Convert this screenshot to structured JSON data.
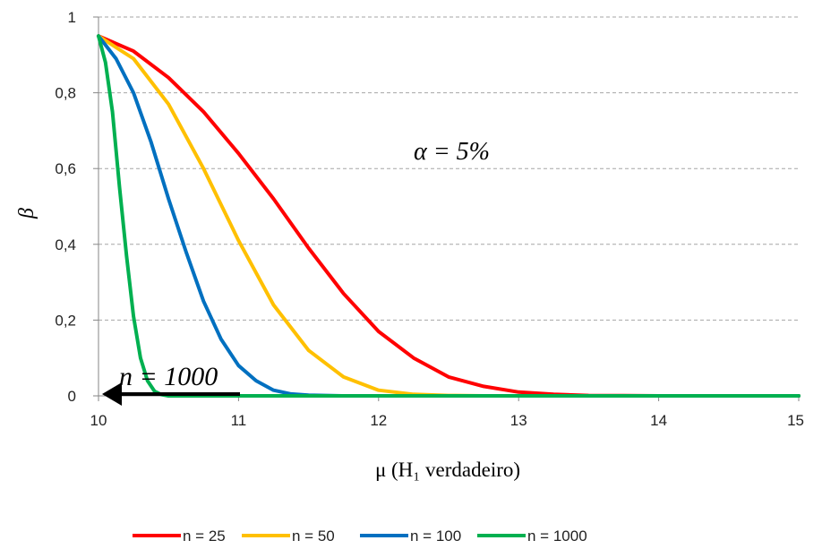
{
  "chart_data": {
    "type": "line",
    "title": "",
    "xlabel": "μ (H₁ verdadeiro)",
    "ylabel": "β",
    "xlim": [
      10,
      15
    ],
    "ylim": [
      0,
      1
    ],
    "x_ticks": [
      "10",
      "11",
      "12",
      "13",
      "14",
      "15"
    ],
    "y_ticks": [
      "0",
      "0,2",
      "0,4",
      "0,6",
      "0,8",
      "1"
    ],
    "grid": "horizontal-dashed",
    "legend_position": "bottom",
    "annotations": {
      "alpha": "α = 5%",
      "arrow_label": "n = 1000"
    },
    "series": [
      {
        "name": "n = 25",
        "color": "#ff0000",
        "x": [
          10,
          10.25,
          10.5,
          10.75,
          11,
          11.25,
          11.5,
          11.75,
          12,
          12.25,
          12.5,
          12.75,
          13,
          13.25,
          13.5,
          13.75,
          14,
          14.5,
          15
        ],
        "y": [
          0.95,
          0.91,
          0.84,
          0.75,
          0.64,
          0.52,
          0.39,
          0.27,
          0.17,
          0.1,
          0.05,
          0.025,
          0.01,
          0.004,
          0.001,
          0.0005,
          0,
          0,
          0
        ]
      },
      {
        "name": "n = 50",
        "color": "#ffc000",
        "x": [
          10,
          10.25,
          10.5,
          10.75,
          11,
          11.25,
          11.5,
          11.75,
          12,
          12.25,
          12.5,
          12.75,
          13,
          14,
          15
        ],
        "y": [
          0.95,
          0.89,
          0.77,
          0.6,
          0.41,
          0.24,
          0.12,
          0.05,
          0.015,
          0.004,
          0.001,
          0,
          0,
          0,
          0
        ]
      },
      {
        "name": "n = 100",
        "color": "#0070c0",
        "x": [
          10,
          10.125,
          10.25,
          10.375,
          10.5,
          10.625,
          10.75,
          10.875,
          11,
          11.125,
          11.25,
          11.375,
          11.5,
          11.75,
          12,
          13,
          14,
          15
        ],
        "y": [
          0.95,
          0.89,
          0.8,
          0.67,
          0.52,
          0.38,
          0.25,
          0.15,
          0.08,
          0.04,
          0.015,
          0.005,
          0.002,
          0,
          0,
          0,
          0,
          0
        ]
      },
      {
        "name": "n = 1000",
        "color": "#00b050",
        "x": [
          10,
          10.05,
          10.1,
          10.15,
          10.2,
          10.25,
          10.3,
          10.35,
          10.4,
          10.45,
          10.5,
          11,
          12,
          13,
          14,
          15
        ],
        "y": [
          0.95,
          0.88,
          0.75,
          0.55,
          0.37,
          0.21,
          0.1,
          0.04,
          0.012,
          0.003,
          0,
          0,
          0,
          0,
          0,
          0
        ]
      }
    ]
  }
}
